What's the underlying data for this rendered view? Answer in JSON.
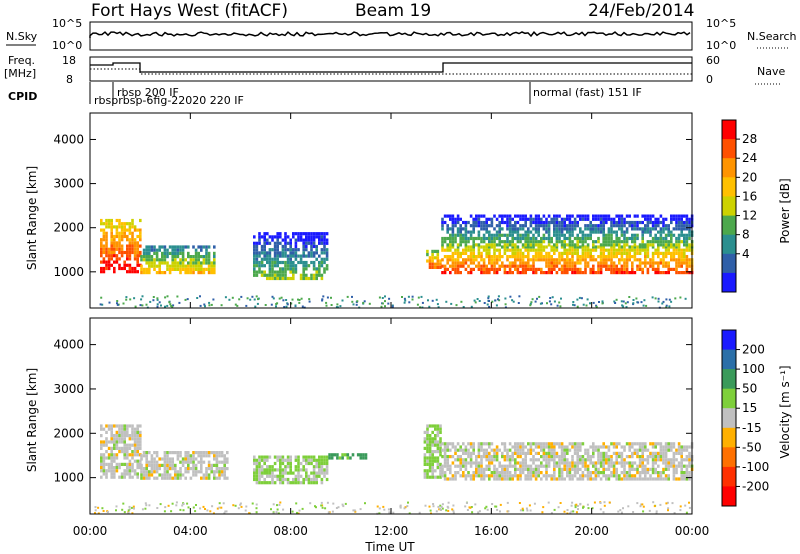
{
  "header": {
    "radar": "Fort Hays West (fitACF)",
    "beam": "Beam 19",
    "date": "24/Feb/2014"
  },
  "top_panel": {
    "left_labels": {
      "nsky": "N.Sky",
      "freq": "Freq.",
      "freq_unit": "[MHz]",
      "cpid": "CPID"
    },
    "right_labels": {
      "nsearch": "N.Search",
      "nave": "Nave"
    },
    "noise_ticks": [
      "10^5",
      "10^0"
    ],
    "noise_ticks_right": [
      "10^5",
      "10^0"
    ],
    "freq_ticks": [
      "18",
      "8"
    ],
    "nave_ticks": [
      "60",
      "0"
    ],
    "cpid_labels": [
      "rbsp  200 IF",
      "rbsprbsp-6fig-22020 220 IF",
      "normal (fast)  151 IF"
    ]
  },
  "colorbars": {
    "power": {
      "label": "Power [dB]",
      "ticks": [
        "28",
        "24",
        "20",
        "16",
        "12",
        "8",
        "4"
      ],
      "colors": [
        "#ff0000",
        "#ff5000",
        "#ff9400",
        "#ffc000",
        "#cdd200",
        "#4ca84c",
        "#2b8f8f",
        "#2f5fa8",
        "#1a1aff"
      ]
    },
    "velocity": {
      "label": "Velocity [m s⁻¹]",
      "ticks": [
        "200",
        "100",
        "50",
        "15",
        "-15",
        "-50",
        "-100",
        "-200"
      ],
      "colors": [
        "#1a1aff",
        "#2b6fa8",
        "#3a9a5a",
        "#7ecf3a",
        "#c0c0c0",
        "#ffb000",
        "#ff7000",
        "#ff3000",
        "#ff0000"
      ]
    }
  },
  "chart_data": [
    {
      "type": "heatmap",
      "title": "Power",
      "ylabel": "Slant Range [km]",
      "xlabel": "Time UT",
      "x_ticks": [
        "00:00",
        "04:00",
        "08:00",
        "12:00",
        "16:00",
        "20:00",
        "00:00"
      ],
      "y_ticks": [
        1000,
        2000,
        3000,
        4000
      ],
      "ylim": [
        180,
        4600
      ],
      "colorbar": "power",
      "regions": [
        {
          "t": [
            0.4,
            2.0
          ],
          "r": [
            1000,
            2200
          ],
          "v": 24
        },
        {
          "t": [
            2.0,
            5.0
          ],
          "r": [
            1000,
            1600
          ],
          "v": 14
        },
        {
          "t": [
            6.5,
            9.5
          ],
          "r": [
            850,
            1900
          ],
          "v": 8
        },
        {
          "t": [
            13.4,
            14.0
          ],
          "r": [
            1100,
            1500
          ],
          "v": 20
        },
        {
          "t": [
            14.0,
            24.0
          ],
          "r": [
            950,
            1600
          ],
          "v": 22
        },
        {
          "t": [
            14.0,
            24.0
          ],
          "r": [
            1600,
            2300
          ],
          "v": 8
        }
      ]
    },
    {
      "type": "heatmap",
      "title": "Velocity",
      "ylabel": "Slant Range [km]",
      "xlabel": "Time UT",
      "x_ticks": [
        "00:00",
        "04:00",
        "08:00",
        "12:00",
        "16:00",
        "20:00",
        "00:00"
      ],
      "y_ticks": [
        1000,
        2000,
        3000,
        4000
      ],
      "ylim": [
        180,
        4600
      ],
      "colorbar": "velocity",
      "regions": [
        {
          "t": [
            0.4,
            2.0
          ],
          "r": [
            1000,
            2200
          ],
          "v": 0
        },
        {
          "t": [
            2.0,
            5.5
          ],
          "r": [
            1000,
            1600
          ],
          "v": 0
        },
        {
          "t": [
            6.5,
            9.5
          ],
          "r": [
            900,
            1500
          ],
          "v": 20
        },
        {
          "t": [
            9.5,
            11.0
          ],
          "r": [
            1450,
            1550
          ],
          "v": 60
        },
        {
          "t": [
            13.3,
            14.0
          ],
          "r": [
            1000,
            2200
          ],
          "v": 20
        },
        {
          "t": [
            14.0,
            24.0
          ],
          "r": [
            950,
            1800
          ],
          "v": 0
        }
      ]
    }
  ]
}
